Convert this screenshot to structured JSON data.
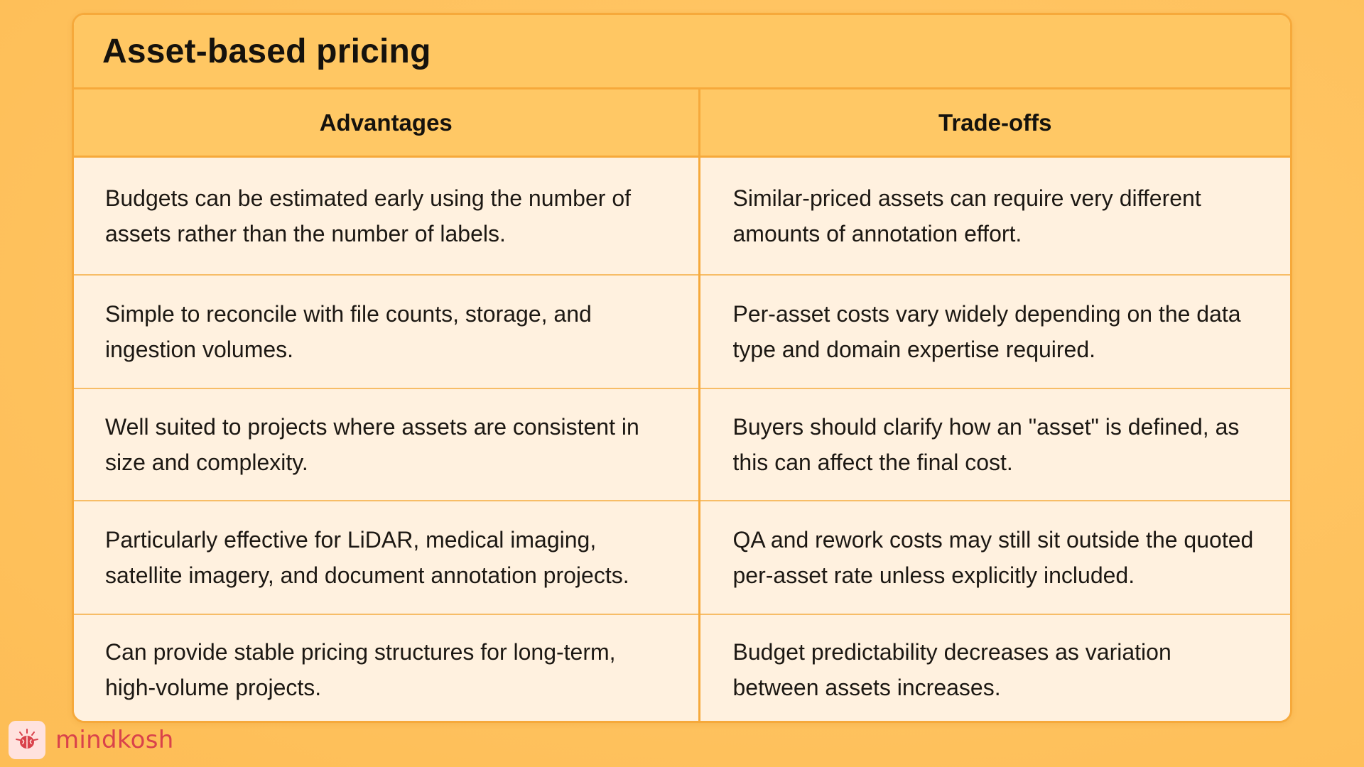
{
  "title": "Asset-based pricing",
  "columns": {
    "advantages": "Advantages",
    "tradeoffs": "Trade-offs"
  },
  "rows": [
    {
      "advantage": "Budgets can be estimated early using the number of assets rather than the number of labels.",
      "tradeoff": "Similar-priced assets can require very different amounts of annotation effort."
    },
    {
      "advantage": "Simple to reconcile with file counts, storage, and ingestion volumes.",
      "tradeoff": "Per-asset costs vary widely depending on the data type and domain expertise required."
    },
    {
      "advantage": "Well suited to projects where assets are consistent in size and complexity.",
      "tradeoff": "Buyers should clarify how an \"asset\" is defined, as this can affect the final cost."
    },
    {
      "advantage": "Particularly effective for LiDAR, medical imaging, satellite imagery, and document annotation projects.",
      "tradeoff": "QA and rework costs may still sit outside the quoted per-asset rate unless explicitly included."
    },
    {
      "advantage": "Can provide stable pricing structures for long-term, high-volume projects.",
      "tradeoff": "Budget predictability decreases as variation between assets increases."
    }
  ],
  "brand": {
    "name": "mindkosh",
    "logo_icon": "brain-icon",
    "color": "#d9424b"
  },
  "colors": {
    "background": "#ffc462",
    "header_fill": "#ffc763",
    "border": "#f6a93b",
    "cell_fill": "#fff1df"
  }
}
